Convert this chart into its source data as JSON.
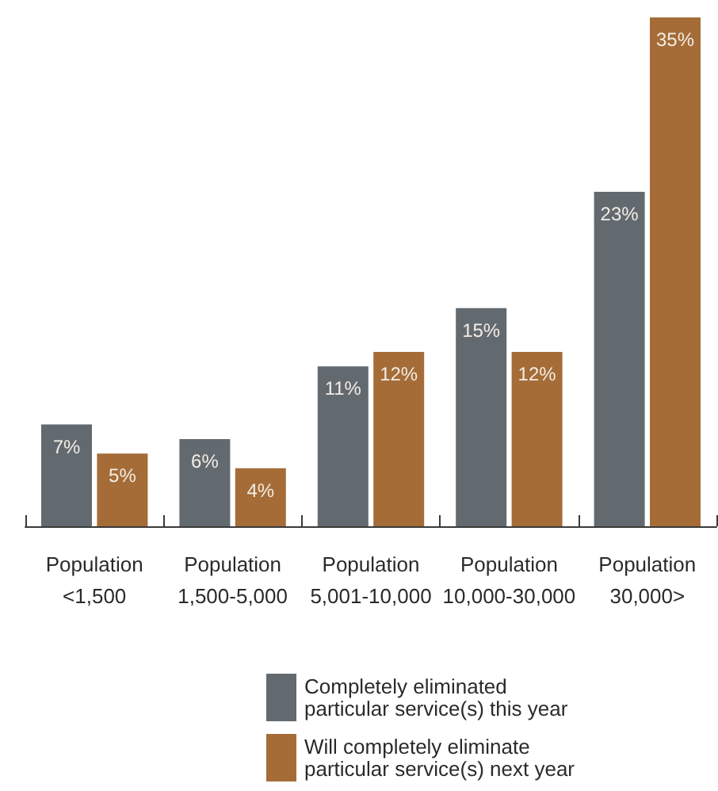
{
  "chart_data": {
    "type": "bar",
    "categories": [
      "Population <1,500",
      "Population 1,500-5,000",
      "Population 5,001-10,000",
      "Population 10,000-30,000",
      "Population 30,000>"
    ],
    "series": [
      {
        "name": "Completely eliminated particular service(s) this year",
        "color": "#626a70",
        "values": [
          7,
          6,
          11,
          15,
          23
        ],
        "value_labels": [
          "7%",
          "6%",
          "11%",
          "15%",
          "23%"
        ]
      },
      {
        "name": "Will completely eliminate particular service(s) next year",
        "color": "#a56c38",
        "values": [
          5,
          4,
          12,
          12,
          35
        ],
        "value_labels": [
          "5%",
          "4%",
          "12%",
          "12%",
          "35%"
        ]
      }
    ],
    "legend": "bottom",
    "grid": false
  }
}
